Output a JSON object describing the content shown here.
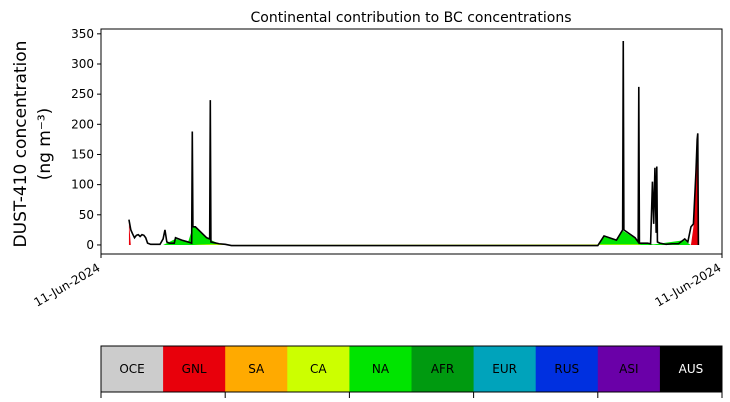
{
  "chart_data": {
    "type": "area",
    "title": "Continental contribution to BC concentrations",
    "ylabel_line1": "DUST-410 concentration",
    "ylabel_line2": "(ng m⁻³)",
    "xlabel": "",
    "x_tick_labels": [
      "11-Jun-2024",
      "11-Jun-2024"
    ],
    "y_ticks": [
      0,
      50,
      100,
      150,
      200,
      250,
      300,
      350
    ],
    "ylim": [
      -15,
      358
    ],
    "x_range": [
      0,
      100
    ],
    "grid": false,
    "total_line_color": "#000000",
    "total": [
      [
        4.5,
        42
      ],
      [
        4.8,
        25
      ],
      [
        5.1,
        18
      ],
      [
        5.4,
        12
      ],
      [
        5.7,
        16
      ],
      [
        6.0,
        17
      ],
      [
        6.3,
        14
      ],
      [
        6.6,
        17
      ],
      [
        6.9,
        16
      ],
      [
        7.2,
        12
      ],
      [
        7.5,
        3
      ],
      [
        8.0,
        1
      ],
      [
        9.5,
        1
      ],
      [
        10.0,
        10
      ],
      [
        10.3,
        25
      ],
      [
        10.6,
        5
      ],
      [
        11.0,
        3
      ],
      [
        11.8,
        3
      ],
      [
        12.0,
        12
      ],
      [
        13.0,
        8
      ],
      [
        14.0,
        5
      ],
      [
        14.6,
        3
      ],
      [
        14.7,
        188
      ],
      [
        14.8,
        30
      ],
      [
        15.2,
        30
      ],
      [
        17.0,
        12
      ],
      [
        17.5,
        10
      ],
      [
        17.6,
        240
      ],
      [
        17.7,
        5
      ],
      [
        19.0,
        2
      ],
      [
        20.0,
        1
      ],
      [
        21.0,
        -1
      ],
      [
        40.0,
        -1
      ],
      [
        60.0,
        -1
      ],
      [
        80.0,
        -1
      ],
      [
        81.0,
        15
      ],
      [
        83.0,
        8
      ],
      [
        84.0,
        25
      ],
      [
        84.1,
        338
      ],
      [
        84.2,
        25
      ],
      [
        86.0,
        12
      ],
      [
        86.5,
        5
      ],
      [
        86.6,
        262
      ],
      [
        86.7,
        3
      ],
      [
        88.0,
        3
      ],
      [
        88.5,
        2
      ],
      [
        88.8,
        105
      ],
      [
        89.0,
        35
      ],
      [
        89.2,
        128
      ],
      [
        89.4,
        20
      ],
      [
        89.5,
        130
      ],
      [
        89.6,
        5
      ],
      [
        90.0,
        3
      ],
      [
        91.0,
        1
      ],
      [
        92.0,
        2
      ],
      [
        93.0,
        2
      ],
      [
        94.0,
        10
      ],
      [
        94.5,
        5
      ],
      [
        95.0,
        30
      ],
      [
        95.4,
        35
      ],
      [
        95.8,
        120
      ],
      [
        96.0,
        175
      ],
      [
        96.1,
        185
      ],
      [
        96.2,
        0
      ]
    ],
    "series": [
      {
        "name": "GNL",
        "color": "#e8000b",
        "values": [
          [
            4.5,
            40
          ],
          [
            4.8,
            0
          ],
          [
            95.0,
            0
          ],
          [
            95.4,
            30
          ],
          [
            95.8,
            110
          ],
          [
            96.0,
            168
          ],
          [
            96.1,
            180
          ],
          [
            96.2,
            0
          ]
        ]
      },
      {
        "name": "NA",
        "color": "#00e400",
        "values": [
          [
            10.0,
            0
          ],
          [
            12.0,
            10
          ],
          [
            13.0,
            7
          ],
          [
            14.0,
            4
          ],
          [
            14.8,
            30
          ],
          [
            15.2,
            30
          ],
          [
            17.0,
            11
          ],
          [
            17.5,
            9
          ],
          [
            19.0,
            2
          ],
          [
            20.0,
            0
          ],
          [
            80.0,
            0
          ],
          [
            81.0,
            14
          ],
          [
            83.0,
            7
          ],
          [
            84.0,
            24
          ],
          [
            86.0,
            11
          ],
          [
            86.5,
            4
          ],
          [
            88.0,
            2
          ],
          [
            89.0,
            1
          ],
          [
            94.0,
            8
          ],
          [
            94.5,
            3
          ],
          [
            95.0,
            0
          ]
        ]
      },
      {
        "name": "SA",
        "color": "#ffaa00",
        "values": [
          [
            15.0,
            0
          ],
          [
            17.5,
            1
          ],
          [
            19.0,
            1
          ],
          [
            20.0,
            0
          ]
        ]
      },
      {
        "name": "CA",
        "color": "#ccff00",
        "values": [
          [
            14.8,
            0
          ],
          [
            17.0,
            1
          ],
          [
            19.0,
            1
          ],
          [
            20.0,
            0
          ],
          [
            84.0,
            1
          ],
          [
            86.0,
            1
          ],
          [
            86.5,
            1
          ],
          [
            87.0,
            0
          ]
        ]
      },
      {
        "name": "EUR",
        "color": "#00a3bb",
        "values": [
          [
            21.0,
            0
          ],
          [
            80.0,
            0
          ]
        ]
      }
    ],
    "legend": [
      {
        "label": "OCE",
        "color": "#cccccc",
        "text_color": "#000000"
      },
      {
        "label": "GNL",
        "color": "#e8000b",
        "text_color": "#000000"
      },
      {
        "label": "SA",
        "color": "#ffaa00",
        "text_color": "#000000"
      },
      {
        "label": "CA",
        "color": "#ccff00",
        "text_color": "#000000"
      },
      {
        "label": "NA",
        "color": "#00e400",
        "text_color": "#000000"
      },
      {
        "label": "AFR",
        "color": "#009a10",
        "text_color": "#000000"
      },
      {
        "label": "EUR",
        "color": "#00a3bb",
        "text_color": "#000000"
      },
      {
        "label": "RUS",
        "color": "#0030e0",
        "text_color": "#000000"
      },
      {
        "label": "ASI",
        "color": "#6a00a8",
        "text_color": "#000000"
      },
      {
        "label": "AUS",
        "color": "#000000",
        "text_color": "#ffffff"
      }
    ],
    "legend_position": "bottom"
  }
}
